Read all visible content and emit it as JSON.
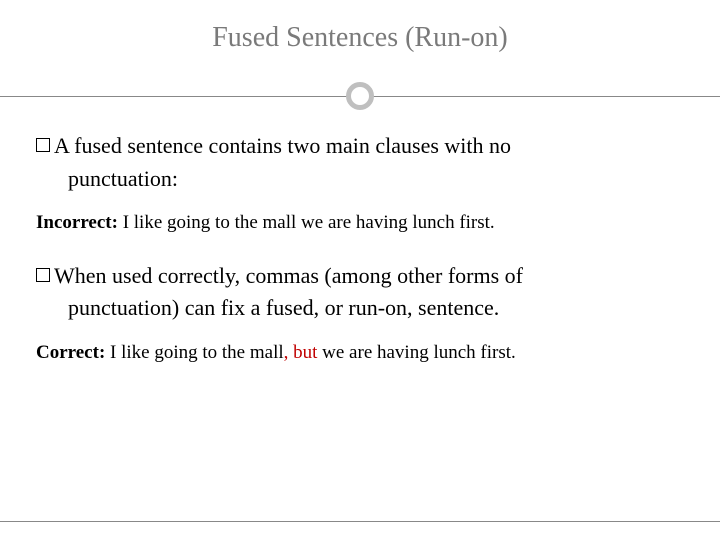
{
  "title": "Fused Sentences (Run-on)",
  "bullet1_first": "A fused sentence contains two main clauses with no",
  "bullet1_cont": "punctuation:",
  "incorrect_label": "Incorrect:",
  "incorrect_text": " I like going to the mall we are having lunch first.",
  "bullet2_first": "When used correctly, commas (among other forms of",
  "bullet2_cont": "punctuation) can fix a fused, or run-on, sentence.",
  "correct_label": "Correct:",
  "correct_text_a": " I like going to the mall",
  "correct_highlight": ", but",
  "correct_text_b": " we are having lunch first.",
  "colors": {
    "title_color": "#7a7a7a",
    "body_color": "#000000",
    "highlight_color": "#c00000",
    "divider_line": "#888888",
    "circle_border": "#bfbfbf",
    "background": "#ffffff"
  },
  "fonts": {
    "title_size": 28,
    "body_size": 22,
    "example_size": 19,
    "family": "Georgia, serif"
  }
}
